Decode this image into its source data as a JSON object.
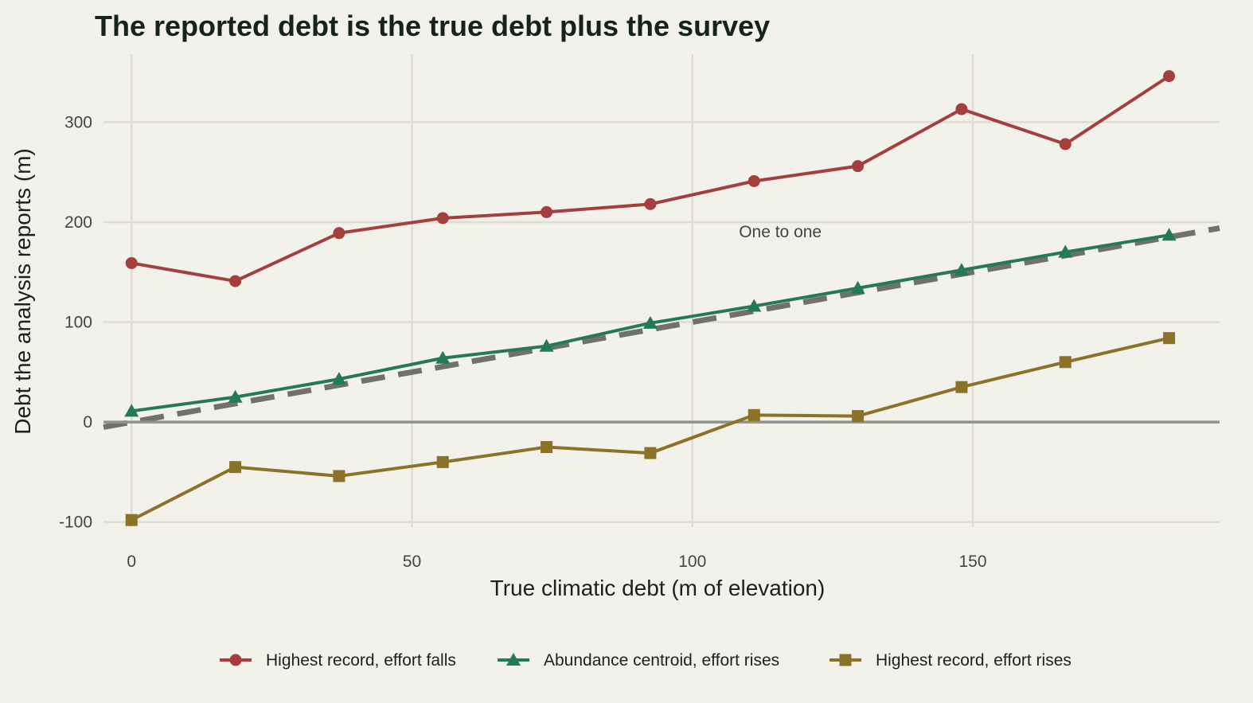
{
  "chart_data": {
    "type": "line",
    "title": "The reported debt is the true debt plus the survey",
    "xlabel": "True climatic debt (m of elevation)",
    "ylabel": "Debt the analysis reports (m)",
    "xlim": [
      -5,
      194
    ],
    "ylim": [
      -105,
      368
    ],
    "x_ticks": [
      0,
      50,
      100,
      150
    ],
    "y_ticks": [
      -100,
      0,
      100,
      200,
      300
    ],
    "grid": true,
    "legend_position": "bottom",
    "reference_line": {
      "label": "One to one",
      "label_x": 110,
      "label_y": 180,
      "from": [
        -5,
        -5
      ],
      "to": [
        194,
        194
      ],
      "color": "#6f716b"
    },
    "zero_line": {
      "y": 0,
      "color": "#8f938b"
    },
    "x": [
      0,
      18.5,
      37,
      55.5,
      74,
      92.5,
      111,
      129.5,
      148,
      166.5,
      185
    ],
    "series": [
      {
        "name": "Highest record, effort falls",
        "marker": "circle",
        "color": "#a33f3d",
        "values": [
          159,
          141,
          189,
          204,
          210,
          218,
          241,
          256,
          313,
          278,
          346
        ]
      },
      {
        "name": "Abundance centroid, effort rises",
        "marker": "triangle",
        "color": "#247a52",
        "values": [
          11,
          25,
          43,
          64,
          76,
          99,
          116,
          134,
          152,
          170,
          187
        ]
      },
      {
        "name": "Highest record, effort rises",
        "marker": "square",
        "color": "#8b7228",
        "values": [
          -98,
          -45,
          -54,
          -40,
          -25,
          -31,
          7,
          6,
          35,
          60,
          84
        ]
      }
    ]
  }
}
